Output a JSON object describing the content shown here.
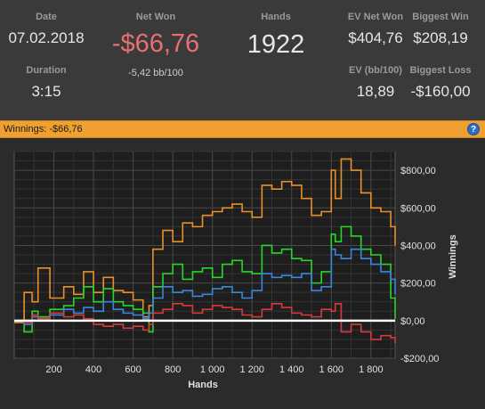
{
  "stats": {
    "date": {
      "label": "Date",
      "value": "07.02.2018"
    },
    "net_won": {
      "label": "Net Won",
      "value": "-$66,76",
      "sub": "-5,42 bb/100"
    },
    "hands": {
      "label": "Hands",
      "value": "1922"
    },
    "ev_net_won": {
      "label": "EV Net Won",
      "value": "$404,76"
    },
    "biggest_win": {
      "label": "Biggest Win",
      "value": "$208,19"
    },
    "duration": {
      "label": "Duration",
      "value": "3:15"
    },
    "ev_bb100": {
      "label": "EV (bb/100)",
      "value": "18,89"
    },
    "biggest_loss": {
      "label": "Biggest Loss",
      "value": "-$160,00"
    }
  },
  "winnings_bar": {
    "text": "Winnings:  -$66,76",
    "help_icon": "question-icon",
    "help_label": "?"
  },
  "colors": {
    "net_won_value": "#e87070",
    "bar_bg": "#f0a030",
    "orange": "#e8902a",
    "green": "#28d628",
    "blue": "#3a86dd",
    "red": "#d83a3a",
    "white": "#ffffff"
  },
  "chart_data": {
    "type": "line",
    "xlabel": "Hands",
    "ylabel": "Winnings",
    "xlim": [
      0,
      1922
    ],
    "ylim": [
      -200,
      900
    ],
    "x_ticks": [
      200,
      400,
      600,
      800,
      1000,
      1200,
      1400,
      1600,
      1800
    ],
    "x_tick_labels": [
      "200",
      "400",
      "600",
      "800",
      "1 000",
      "1 200",
      "1 400",
      "1 600",
      "1 800"
    ],
    "y_ticks": [
      800,
      600,
      400,
      200,
      0,
      -200
    ],
    "y_tick_labels": [
      "$800,00",
      "$600,00",
      "$400,00",
      "$200,00",
      "$0,00",
      "-$200,00"
    ],
    "grid": true,
    "series": [
      {
        "color": "orange",
        "x": [
          0,
          50,
          90,
          120,
          180,
          250,
          300,
          350,
          400,
          450,
          500,
          550,
          600,
          650,
          680,
          700,
          750,
          800,
          850,
          900,
          950,
          1000,
          1050,
          1100,
          1150,
          1200,
          1250,
          1300,
          1350,
          1400,
          1450,
          1500,
          1550,
          1600,
          1620,
          1650,
          1700,
          1750,
          1800,
          1850,
          1900,
          1922
        ],
        "values": [
          -10,
          150,
          100,
          280,
          120,
          180,
          140,
          260,
          150,
          230,
          160,
          150,
          110,
          20,
          80,
          380,
          480,
          420,
          520,
          500,
          560,
          580,
          600,
          620,
          580,
          550,
          720,
          700,
          740,
          720,
          650,
          560,
          580,
          800,
          650,
          860,
          800,
          680,
          600,
          580,
          500,
          400
        ]
      },
      {
        "color": "green",
        "x": [
          0,
          50,
          90,
          120,
          180,
          250,
          300,
          350,
          400,
          450,
          500,
          550,
          600,
          650,
          680,
          700,
          750,
          800,
          850,
          900,
          950,
          1000,
          1050,
          1100,
          1150,
          1200,
          1250,
          1300,
          1350,
          1400,
          1450,
          1500,
          1550,
          1600,
          1620,
          1650,
          1700,
          1750,
          1800,
          1850,
          1900,
          1922
        ],
        "values": [
          0,
          -60,
          50,
          20,
          60,
          80,
          120,
          180,
          100,
          170,
          100,
          80,
          60,
          40,
          -60,
          180,
          250,
          300,
          220,
          260,
          280,
          230,
          300,
          320,
          260,
          250,
          400,
          360,
          380,
          330,
          320,
          200,
          260,
          460,
          420,
          500,
          450,
          380,
          350,
          300,
          120,
          10
        ]
      },
      {
        "color": "blue",
        "x": [
          0,
          50,
          90,
          120,
          180,
          250,
          300,
          350,
          400,
          450,
          500,
          550,
          600,
          650,
          680,
          700,
          750,
          800,
          850,
          900,
          950,
          1000,
          1050,
          1100,
          1150,
          1200,
          1250,
          1300,
          1350,
          1400,
          1450,
          1500,
          1550,
          1600,
          1620,
          1650,
          1700,
          1750,
          1800,
          1850,
          1900,
          1922
        ],
        "values": [
          0,
          -20,
          20,
          10,
          30,
          60,
          40,
          70,
          50,
          100,
          60,
          40,
          30,
          10,
          40,
          120,
          180,
          150,
          160,
          130,
          140,
          170,
          180,
          150,
          120,
          160,
          250,
          230,
          240,
          230,
          250,
          160,
          180,
          380,
          350,
          330,
          380,
          330,
          300,
          260,
          220,
          140
        ]
      },
      {
        "color": "red",
        "x": [
          0,
          50,
          90,
          120,
          180,
          250,
          300,
          350,
          400,
          450,
          500,
          550,
          600,
          650,
          680,
          700,
          750,
          800,
          850,
          900,
          950,
          1000,
          1050,
          1100,
          1150,
          1200,
          1250,
          1300,
          1350,
          1400,
          1450,
          1500,
          1550,
          1600,
          1620,
          1650,
          1700,
          1750,
          1800,
          1850,
          1900,
          1922
        ],
        "values": [
          0,
          -10,
          30,
          10,
          40,
          20,
          30,
          10,
          -20,
          -30,
          -20,
          -40,
          -30,
          -50,
          -20,
          40,
          60,
          90,
          80,
          40,
          60,
          80,
          70,
          60,
          30,
          20,
          60,
          90,
          70,
          40,
          30,
          20,
          60,
          50,
          90,
          -60,
          -20,
          -60,
          -100,
          -80,
          -90,
          -120
        ]
      },
      {
        "color": "white",
        "x": [
          0,
          1922
        ],
        "values": [
          0,
          0
        ]
      }
    ]
  }
}
